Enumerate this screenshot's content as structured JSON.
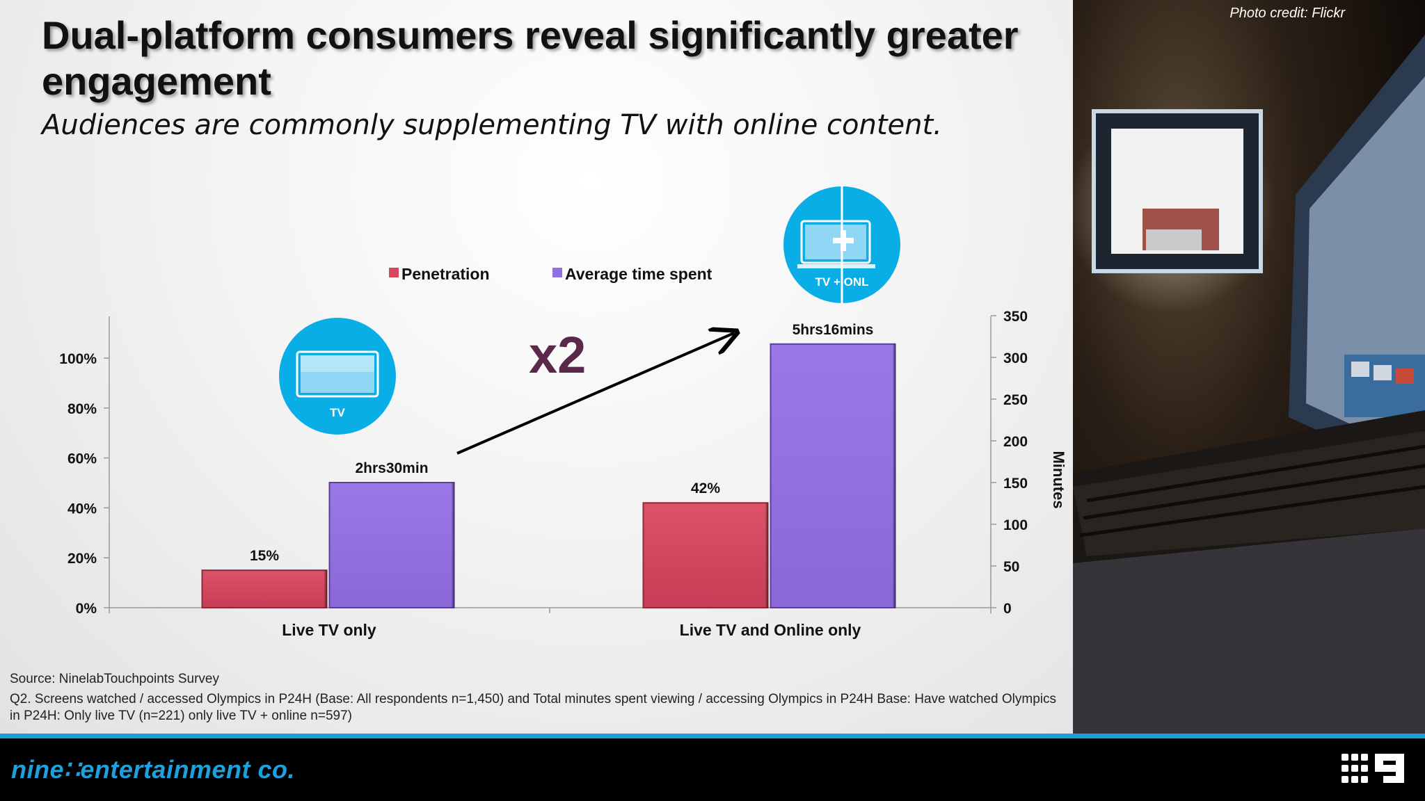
{
  "slide": {
    "title": "Dual-platform consumers reveal significantly greater engagement",
    "subtitle": "Audiences are commonly supplementing TV with online content.",
    "photo_credit": "Photo credit: Flickr",
    "source_line": "Source: NinelabTouchpoints Survey",
    "note_line": "Q2. Screens watched / accessed Olympics in P24H (Base: All respondents n=1,450) and Total minutes spent viewing / accessing Olympics in P24H Base: Have watched Olympics in P24H: Only live TV (n=221) only live TV + online n=597)",
    "footer_logo": "nine∷entertainment co.",
    "multiplier_label": "x2",
    "icons": [
      {
        "name": "tv-icon",
        "label": "TV"
      },
      {
        "name": "tv-plus-online-icon",
        "label": "TV + ONL"
      }
    ],
    "colors": {
      "accent": "#1ea0df",
      "penetration": "#d2485f",
      "time": "#9270e0",
      "multiplier": "#5a2848"
    }
  },
  "chart_data": {
    "type": "bar",
    "categories": [
      "Live TV only",
      "Live TV and Online only"
    ],
    "series": [
      {
        "name": "Penetration",
        "axis": "left",
        "values": [
          15,
          42
        ],
        "labels": [
          "15%",
          "42%"
        ],
        "color": "#d2485f"
      },
      {
        "name": "Average time spent",
        "axis": "right",
        "values": [
          150,
          316
        ],
        "labels": [
          "2hrs30min",
          "5hrs16mins"
        ],
        "color": "#9270e0"
      }
    ],
    "y_left": {
      "ticks": [
        "0%",
        "20%",
        "40%",
        "60%",
        "80%",
        "100%"
      ],
      "min": 0,
      "max": 117
    },
    "y_right": {
      "label": "Minutes",
      "ticks": [
        "0",
        "50",
        "100",
        "150",
        "200",
        "250",
        "300",
        "350"
      ],
      "min": 0,
      "max": 350
    },
    "legend": "top-center",
    "grid": false
  }
}
